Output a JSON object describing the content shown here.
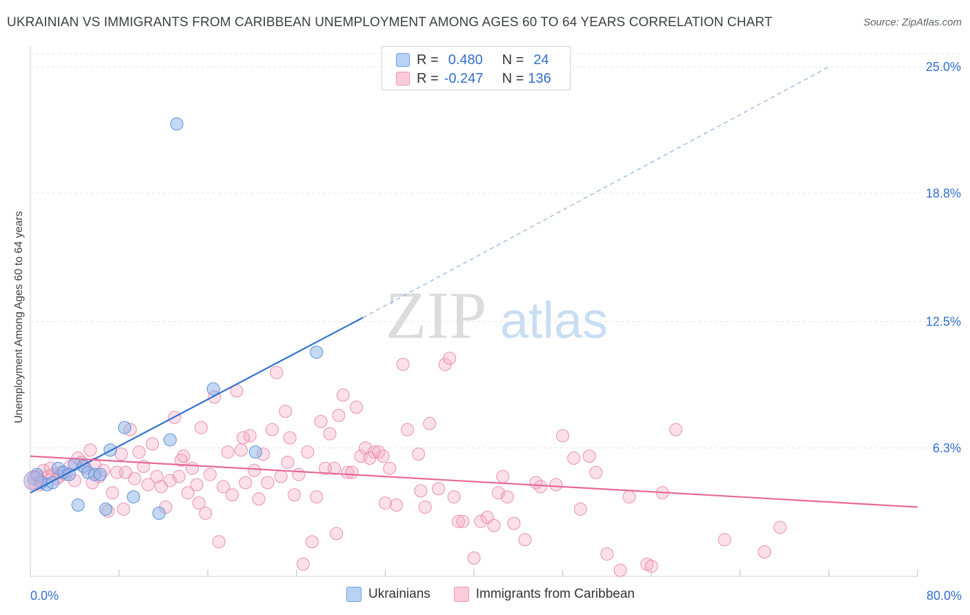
{
  "title": "UKRAINIAN VS IMMIGRANTS FROM CARIBBEAN UNEMPLOYMENT AMONG AGES 60 TO 64 YEARS CORRELATION CHART",
  "source": "Source: ZipAtlas.com",
  "watermark": {
    "zip": "ZIP",
    "atlas": "atlas"
  },
  "legend": {
    "rows": [
      {
        "r_label": "R =",
        "r_value": "0.480",
        "n_label": "N =",
        "n_value": "24"
      },
      {
        "r_label": "R =",
        "r_value": "-0.247",
        "n_label": "N =",
        "n_value": "136"
      }
    ]
  },
  "chart_data": {
    "type": "scatter",
    "title": "UKRAINIAN VS IMMIGRANTS FROM CARIBBEAN UNEMPLOYMENT AMONG AGES 60 TO 64 YEARS CORRELATION CHART",
    "xlabel": "",
    "ylabel": "Unemployment Among Ages 60 to 64 years",
    "xlim": [
      0,
      80
    ],
    "ylim": [
      0,
      25.6
    ],
    "x_tick_labels": [
      "0.0%",
      "80.0%"
    ],
    "y_ticks": [
      6.3,
      12.5,
      18.8,
      25.0
    ],
    "y_tick_labels": [
      "6.3%",
      "12.5%",
      "18.8%",
      "25.0%"
    ],
    "grid": true,
    "legend_position": "bottom",
    "colors": {
      "ukrainians": "#8ab4ea",
      "caribbean": "#f4a6c0",
      "ukr_line": "#2f6fd0",
      "car_line": "#e8679a"
    },
    "series": [
      {
        "name": "Ukrainians",
        "r": 0.48,
        "n": 24,
        "trend": {
          "x0": 0,
          "y0": 4.1,
          "x1": 30,
          "y1": 12.7,
          "dashed_to_x": 72,
          "dashed_to_y": 25.0
        },
        "points": [
          [
            0.3,
            4.8
          ],
          [
            0.6,
            5.0
          ],
          [
            1.0,
            4.6
          ],
          [
            1.5,
            4.5
          ],
          [
            2.0,
            4.6
          ],
          [
            2.5,
            5.3
          ],
          [
            3.0,
            5.1
          ],
          [
            3.5,
            5.0
          ],
          [
            4.0,
            5.5
          ],
          [
            4.3,
            3.5
          ],
          [
            4.8,
            5.4
          ],
          [
            5.2,
            5.1
          ],
          [
            5.8,
            5.0
          ],
          [
            6.3,
            5.0
          ],
          [
            6.8,
            3.3
          ],
          [
            7.2,
            6.2
          ],
          [
            8.5,
            7.3
          ],
          [
            9.3,
            3.9
          ],
          [
            11.6,
            3.1
          ],
          [
            12.6,
            6.7
          ],
          [
            13.2,
            22.2
          ],
          [
            16.5,
            9.2
          ],
          [
            20.3,
            6.1
          ],
          [
            25.8,
            11.0
          ]
        ]
      },
      {
        "name": "Immigrants from Caribbean",
        "r": -0.247,
        "n": 136,
        "trend": {
          "x0": 0,
          "y0": 5.9,
          "x1": 80,
          "y1": 3.4
        },
        "points": [
          [
            0.3,
            4.6
          ],
          [
            0.6,
            4.9
          ],
          [
            0.9,
            4.7
          ],
          [
            1.2,
            5.2
          ],
          [
            1.6,
            4.9
          ],
          [
            2.0,
            5.0
          ],
          [
            2.4,
            4.8
          ],
          [
            2.8,
            5.1
          ],
          [
            3.2,
            5.0
          ],
          [
            3.6,
            5.4
          ],
          [
            4.0,
            4.7
          ],
          [
            4.3,
            5.8
          ],
          [
            4.6,
            5.6
          ],
          [
            5.0,
            5.3
          ],
          [
            5.4,
            6.2
          ],
          [
            5.8,
            5.5
          ],
          [
            6.2,
            4.9
          ],
          [
            6.6,
            5.2
          ],
          [
            7.0,
            3.2
          ],
          [
            7.4,
            4.1
          ],
          [
            7.8,
            5.1
          ],
          [
            8.2,
            6.0
          ],
          [
            8.6,
            5.1
          ],
          [
            9.0,
            7.2
          ],
          [
            9.4,
            4.8
          ],
          [
            9.8,
            6.1
          ],
          [
            10.2,
            5.4
          ],
          [
            10.6,
            4.5
          ],
          [
            11.0,
            6.5
          ],
          [
            11.4,
            4.9
          ],
          [
            11.8,
            4.4
          ],
          [
            12.2,
            3.4
          ],
          [
            12.6,
            4.7
          ],
          [
            13.0,
            7.8
          ],
          [
            13.4,
            4.9
          ],
          [
            13.8,
            5.9
          ],
          [
            14.2,
            4.1
          ],
          [
            14.6,
            5.3
          ],
          [
            15.0,
            4.5
          ],
          [
            15.4,
            7.3
          ],
          [
            15.8,
            3.1
          ],
          [
            16.2,
            5.0
          ],
          [
            16.6,
            8.8
          ],
          [
            17.0,
            1.7
          ],
          [
            17.4,
            4.4
          ],
          [
            17.8,
            6.1
          ],
          [
            18.2,
            4.0
          ],
          [
            18.6,
            9.1
          ],
          [
            19.0,
            6.2
          ],
          [
            19.4,
            4.6
          ],
          [
            19.8,
            6.9
          ],
          [
            20.2,
            5.2
          ],
          [
            20.6,
            3.8
          ],
          [
            21.0,
            6.0
          ],
          [
            21.4,
            4.6
          ],
          [
            21.8,
            7.2
          ],
          [
            22.2,
            10.0
          ],
          [
            22.6,
            4.9
          ],
          [
            23.0,
            8.1
          ],
          [
            23.4,
            6.8
          ],
          [
            23.8,
            4.0
          ],
          [
            24.2,
            5.0
          ],
          [
            24.6,
            0.6
          ],
          [
            25.0,
            6.1
          ],
          [
            25.4,
            1.7
          ],
          [
            25.8,
            3.9
          ],
          [
            26.2,
            7.6
          ],
          [
            26.6,
            5.3
          ],
          [
            27.0,
            7.0
          ],
          [
            27.4,
            5.3
          ],
          [
            27.8,
            7.9
          ],
          [
            28.2,
            8.9
          ],
          [
            28.6,
            5.1
          ],
          [
            29.0,
            5.1
          ],
          [
            29.4,
            8.3
          ],
          [
            29.8,
            5.9
          ],
          [
            30.2,
            6.3
          ],
          [
            30.6,
            5.8
          ],
          [
            31.0,
            6.1
          ],
          [
            31.4,
            6.1
          ],
          [
            32.0,
            3.6
          ],
          [
            32.4,
            5.3
          ],
          [
            33.0,
            3.5
          ],
          [
            33.6,
            10.4
          ],
          [
            34.0,
            7.2
          ],
          [
            35.0,
            6.0
          ],
          [
            35.6,
            3.4
          ],
          [
            36.0,
            7.5
          ],
          [
            36.8,
            4.3
          ],
          [
            37.4,
            10.4
          ],
          [
            37.8,
            10.7
          ],
          [
            38.2,
            3.9
          ],
          [
            38.6,
            2.7
          ],
          [
            39.0,
            2.7
          ],
          [
            40.0,
            0.9
          ],
          [
            40.6,
            2.7
          ],
          [
            41.2,
            2.9
          ],
          [
            41.8,
            2.5
          ],
          [
            42.6,
            4.9
          ],
          [
            43.0,
            3.9
          ],
          [
            43.6,
            2.6
          ],
          [
            44.6,
            1.8
          ],
          [
            45.6,
            4.6
          ],
          [
            46.0,
            4.4
          ],
          [
            48.0,
            6.9
          ],
          [
            49.0,
            5.8
          ],
          [
            49.6,
            3.3
          ],
          [
            51.0,
            5.1
          ],
          [
            52.0,
            1.1
          ],
          [
            53.2,
            0.3
          ],
          [
            54.0,
            3.9
          ],
          [
            55.6,
            0.6
          ],
          [
            56.0,
            0.5
          ],
          [
            58.2,
            7.2
          ],
          [
            62.6,
            1.8
          ],
          [
            66.2,
            1.2
          ],
          [
            67.6,
            2.4
          ],
          [
            0.8,
            4.5
          ],
          [
            1.8,
            5.3
          ],
          [
            2.6,
            4.9
          ],
          [
            5.6,
            4.6
          ],
          [
            8.4,
            3.3
          ],
          [
            13.6,
            5.7
          ],
          [
            15.2,
            3.6
          ],
          [
            19.2,
            6.8
          ],
          [
            23.2,
            5.6
          ],
          [
            27.6,
            2.1
          ],
          [
            31.8,
            5.9
          ],
          [
            35.2,
            4.2
          ],
          [
            42.2,
            4.1
          ],
          [
            47.4,
            4.5
          ],
          [
            50.4,
            5.9
          ],
          [
            57.0,
            4.1
          ]
        ]
      }
    ]
  },
  "axis": {
    "y_tick_labels": [
      "25.0%",
      "18.8%",
      "12.5%",
      "6.3%"
    ],
    "x_left_label": "0.0%",
    "x_right_label": "80.0%",
    "ylabel": "Unemployment Among Ages 60 to 64 years"
  },
  "bottom_legend": {
    "ukrainians": "Ukrainians",
    "caribbean": "Immigrants from Caribbean"
  }
}
